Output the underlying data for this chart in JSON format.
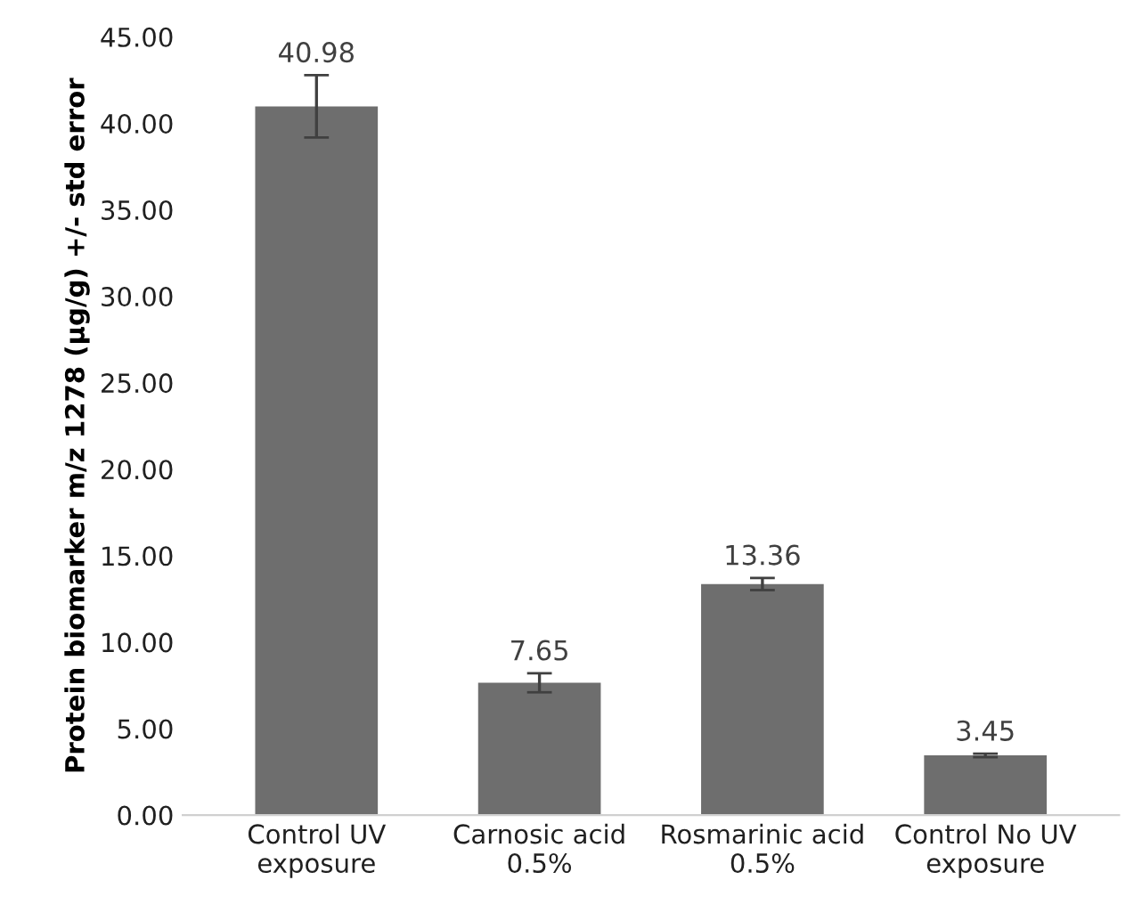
{
  "chart_data": {
    "type": "bar",
    "ylabel": "Protein biomarker m/z 1278 (µg/g) +/- std error",
    "categories": [
      "Control UV\nexposure",
      "Carnosic acid\n0.5%",
      "Rosmarinic acid\n0.5%",
      "Control No UV\nexposure"
    ],
    "values": [
      40.98,
      7.65,
      13.36,
      3.45
    ],
    "errors": [
      1.8,
      0.55,
      0.35,
      0.1
    ],
    "color": "#6e6e6e",
    "data_labels": true,
    "ylim": [
      0,
      45
    ],
    "yticks": [
      {
        "value": 0,
        "label": "0.00"
      },
      {
        "value": 5,
        "label": "5.00"
      },
      {
        "value": 10,
        "label": "10.00"
      },
      {
        "value": 15,
        "label": "15.00"
      },
      {
        "value": 20,
        "label": "20.00"
      },
      {
        "value": 25,
        "label": "25.00"
      },
      {
        "value": 30,
        "label": "30.00"
      },
      {
        "value": 35,
        "label": "35.00"
      },
      {
        "value": 40,
        "label": "40.00"
      },
      {
        "value": 45,
        "label": "45.00"
      }
    ],
    "grid": false
  }
}
